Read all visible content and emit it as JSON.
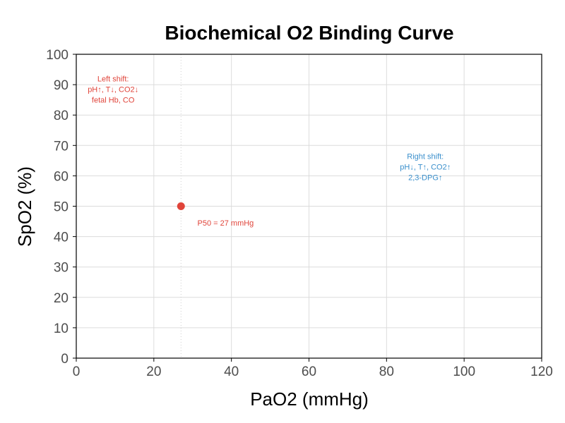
{
  "chart_data": {
    "type": "scatter",
    "title": "Biochemical O2 Binding Curve",
    "xlabel": "PaO2 (mmHg)",
    "ylabel": "SpO2 (%)",
    "xlim": [
      0,
      120
    ],
    "ylim": [
      0,
      100
    ],
    "x_ticks": [
      0,
      20,
      40,
      60,
      80,
      100,
      120
    ],
    "y_ticks": [
      0,
      10,
      20,
      30,
      40,
      50,
      60,
      70,
      80,
      90,
      100
    ],
    "grid": true,
    "points": [
      {
        "x": 27,
        "y": 50,
        "color": "#e0443a"
      }
    ],
    "reference_lines": [
      {
        "orientation": "vertical",
        "x": 27,
        "style": "dotted"
      }
    ],
    "annotations": [
      {
        "lines": [
          "P50 = 27 mmHg"
        ],
        "x": 38.5,
        "y": 44.5,
        "color": "#e0443a"
      },
      {
        "lines": [
          "Left shift:",
          "pH↑, T↓, CO2↓",
          "fetal Hb, CO"
        ],
        "x": 9.5,
        "y": 88.5,
        "color": "#e0443a"
      },
      {
        "lines": [
          "Right shift:",
          "pH↓, T↑, CO2↑",
          "2,3-DPG↑"
        ],
        "x": 90,
        "y": 63,
        "color": "#3a8fcc"
      }
    ],
    "colors": {
      "grid": "#dcdcdc",
      "axis": "#000000",
      "tick_text": "#4d4d4d",
      "reference_line": "#cccccc"
    }
  }
}
